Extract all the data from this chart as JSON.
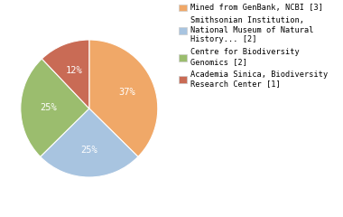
{
  "legend_labels": [
    "Mined from GenBank, NCBI [3]",
    "Smithsonian Institution,\nNational Museum of Natural\nHistory... [2]",
    "Centre for Biodiversity\nGenomics [2]",
    "Academia Sinica, Biodiversity\nResearch Center [1]"
  ],
  "values": [
    37,
    25,
    25,
    12
  ],
  "colors": [
    "#F0A868",
    "#A8C4E0",
    "#9BBD6E",
    "#C96B55"
  ],
  "pct_labels": [
    "37%",
    "25%",
    "25%",
    "12%"
  ],
  "startangle": 90,
  "counterclock": false,
  "figsize": [
    3.8,
    2.4
  ],
  "dpi": 100,
  "text_color": "white",
  "font_size": 7.5,
  "legend_fontsize": 6.2
}
